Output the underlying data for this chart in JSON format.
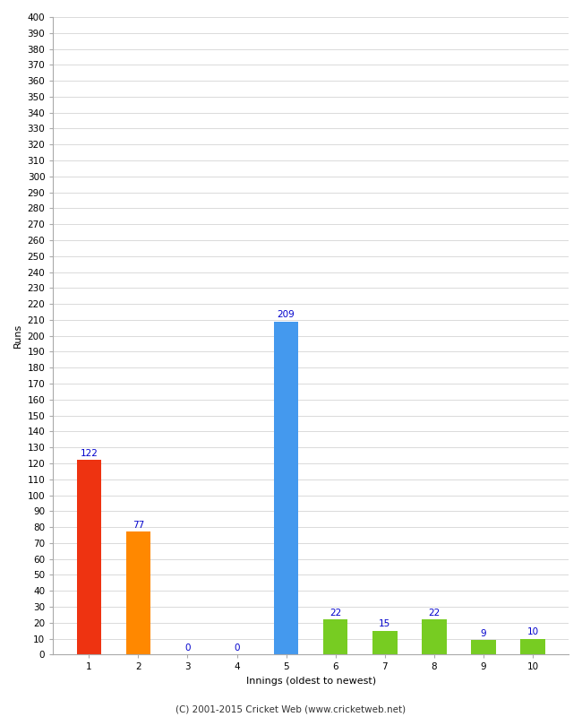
{
  "categories": [
    "1",
    "2",
    "3",
    "4",
    "5",
    "6",
    "7",
    "8",
    "9",
    "10"
  ],
  "values": [
    122,
    77,
    0,
    0,
    209,
    22,
    15,
    22,
    9,
    10
  ],
  "bar_colors": [
    "#ee3311",
    "#ff8800",
    "#aabbaa",
    "#aabbaa",
    "#4499ee",
    "#77cc22",
    "#77cc22",
    "#77cc22",
    "#77cc22",
    "#77cc22"
  ],
  "xlabel": "Innings (oldest to newest)",
  "ylabel": "Runs",
  "ylim": [
    0,
    400
  ],
  "background_color": "#ffffff",
  "footer": "(C) 2001-2015 Cricket Web (www.cricketweb.net)",
  "label_color": "#0000cc",
  "label_fontsize": 7.5,
  "axis_label_fontsize": 8,
  "tick_fontsize": 7.5,
  "footer_fontsize": 7.5,
  "grid_color": "#cccccc",
  "bar_width": 0.5
}
